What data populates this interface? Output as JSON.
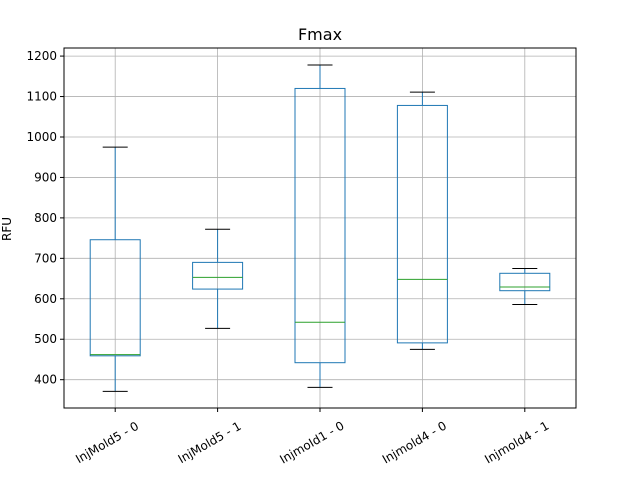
{
  "chart_data": {
    "type": "box",
    "title": "Fmax",
    "xlabel": "",
    "ylabel": "RFU",
    "ylim": [
      330,
      1220
    ],
    "yticks": [
      400,
      500,
      600,
      700,
      800,
      900,
      1000,
      1100,
      1200
    ],
    "grid": true,
    "categories": [
      "InjMold5 - 0",
      "InjMold5 - 1",
      "InjmoId1 - 0",
      "Injmold4 - 0",
      "Injmold4 - 1"
    ],
    "boxes": [
      {
        "whisker_low": 371,
        "q1": 459,
        "median": 462,
        "q3": 746,
        "whisker_high": 975
      },
      {
        "whisker_low": 527,
        "q1": 624,
        "median": 653,
        "q3": 690,
        "whisker_high": 772
      },
      {
        "whisker_low": 381,
        "q1": 442,
        "median": 542,
        "q3": 1120,
        "whisker_high": 1178
      },
      {
        "whisker_low": 475,
        "q1": 491,
        "median": 648,
        "q3": 1078,
        "whisker_high": 1111
      },
      {
        "whisker_low": 586,
        "q1": 620,
        "median": 629,
        "q3": 663,
        "whisker_high": 675
      }
    ],
    "colors": {
      "box": "#1f77b4",
      "median": "#2ca02c",
      "whisker": "#1f77b4",
      "cap": "#000000",
      "grid": "#b0b0b0"
    }
  }
}
